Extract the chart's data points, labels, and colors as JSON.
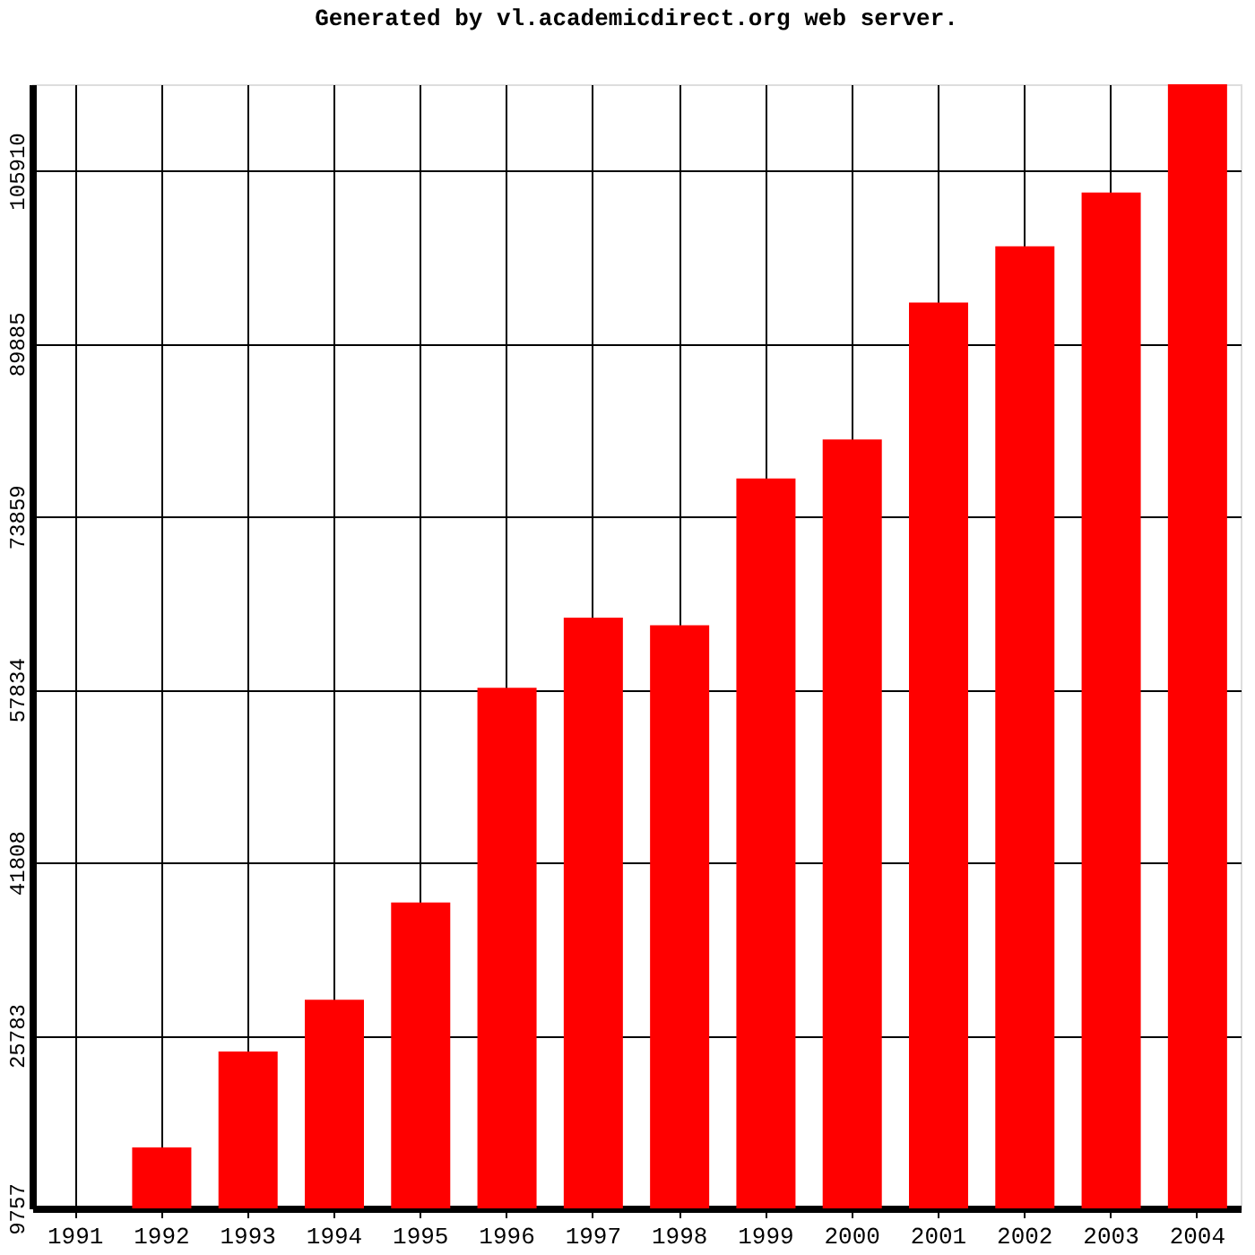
{
  "chart_data": {
    "type": "bar",
    "title": "Generated by vl.academicdirect.org web server.",
    "categories": [
      "1991",
      "1992",
      "1993",
      "1994",
      "1995",
      "1996",
      "1997",
      "1998",
      "1999",
      "2000",
      "2001",
      "2002",
      "2003",
      "2004"
    ],
    "values": [
      9757,
      15400,
      24300,
      29100,
      38100,
      58000,
      64500,
      63800,
      77400,
      81000,
      93700,
      98900,
      103900,
      113920
    ],
    "color": "#ff0000",
    "ylim": [
      9757,
      113920
    ],
    "yticks": [
      9757,
      25783,
      41808,
      57834,
      73859,
      89885,
      105910
    ],
    "grid": true
  }
}
